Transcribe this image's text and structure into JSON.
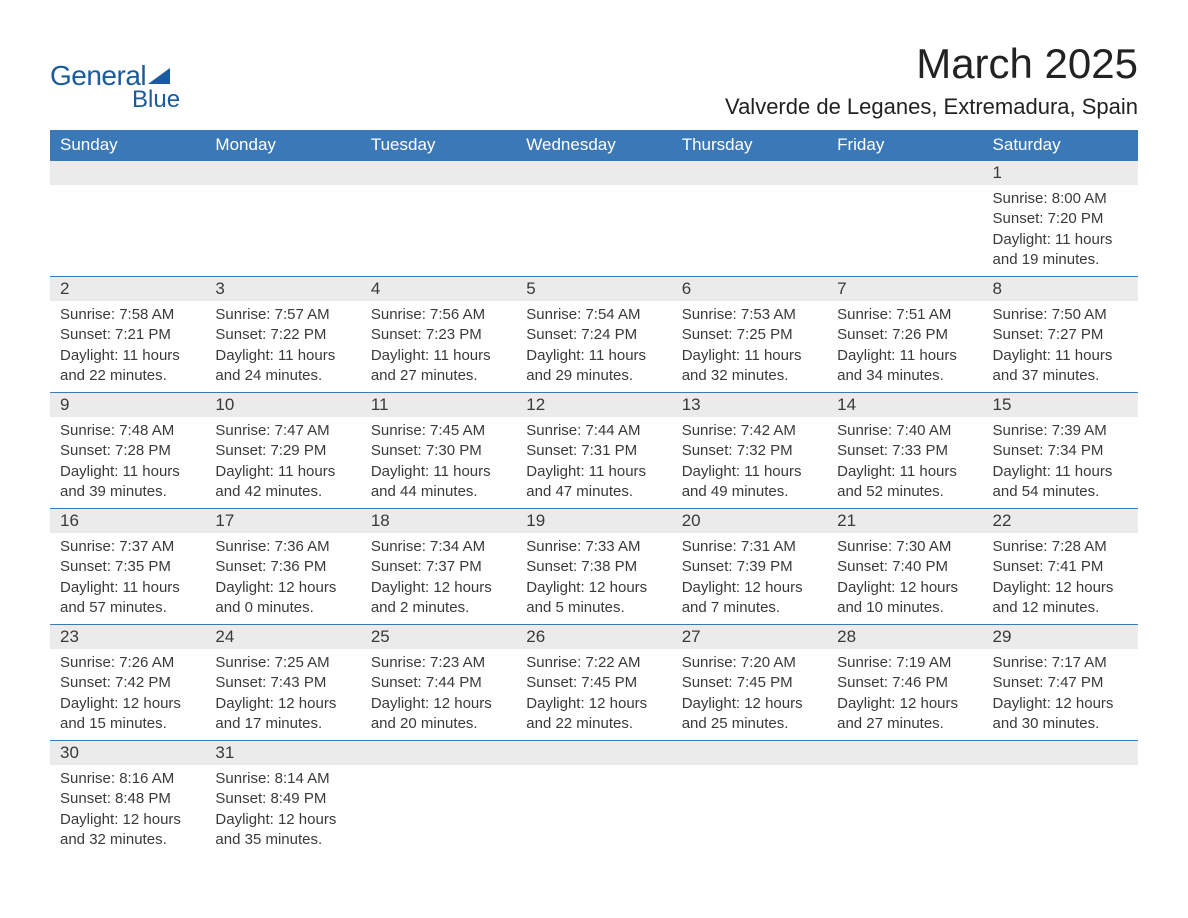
{
  "logo": {
    "word1": "General",
    "word2": "Blue",
    "triangle_color": "#1a5a9e"
  },
  "title": "March 2025",
  "location": "Valverde de Leganes, Extremadura, Spain",
  "colors": {
    "header_bg": "#3b78b8",
    "header_text": "#ffffff",
    "daynum_bg": "#ebebeb",
    "row_divider": "#3b78b8",
    "body_text": "#3a3a3a",
    "page_bg": "#ffffff"
  },
  "typography": {
    "title_fontsize": 42,
    "location_fontsize": 22,
    "header_fontsize": 17,
    "daynum_fontsize": 17,
    "body_fontsize": 15,
    "font_family": "Arial"
  },
  "calendar": {
    "type": "table",
    "columns": [
      "Sunday",
      "Monday",
      "Tuesday",
      "Wednesday",
      "Thursday",
      "Friday",
      "Saturday"
    ],
    "weeks": [
      [
        {
          "blank": true
        },
        {
          "blank": true
        },
        {
          "blank": true
        },
        {
          "blank": true
        },
        {
          "blank": true
        },
        {
          "blank": true
        },
        {
          "day": "1",
          "sunrise": "Sunrise: 8:00 AM",
          "sunset": "Sunset: 7:20 PM",
          "dl1": "Daylight: 11 hours",
          "dl2": "and 19 minutes."
        }
      ],
      [
        {
          "day": "2",
          "sunrise": "Sunrise: 7:58 AM",
          "sunset": "Sunset: 7:21 PM",
          "dl1": "Daylight: 11 hours",
          "dl2": "and 22 minutes."
        },
        {
          "day": "3",
          "sunrise": "Sunrise: 7:57 AM",
          "sunset": "Sunset: 7:22 PM",
          "dl1": "Daylight: 11 hours",
          "dl2": "and 24 minutes."
        },
        {
          "day": "4",
          "sunrise": "Sunrise: 7:56 AM",
          "sunset": "Sunset: 7:23 PM",
          "dl1": "Daylight: 11 hours",
          "dl2": "and 27 minutes."
        },
        {
          "day": "5",
          "sunrise": "Sunrise: 7:54 AM",
          "sunset": "Sunset: 7:24 PM",
          "dl1": "Daylight: 11 hours",
          "dl2": "and 29 minutes."
        },
        {
          "day": "6",
          "sunrise": "Sunrise: 7:53 AM",
          "sunset": "Sunset: 7:25 PM",
          "dl1": "Daylight: 11 hours",
          "dl2": "and 32 minutes."
        },
        {
          "day": "7",
          "sunrise": "Sunrise: 7:51 AM",
          "sunset": "Sunset: 7:26 PM",
          "dl1": "Daylight: 11 hours",
          "dl2": "and 34 minutes."
        },
        {
          "day": "8",
          "sunrise": "Sunrise: 7:50 AM",
          "sunset": "Sunset: 7:27 PM",
          "dl1": "Daylight: 11 hours",
          "dl2": "and 37 minutes."
        }
      ],
      [
        {
          "day": "9",
          "sunrise": "Sunrise: 7:48 AM",
          "sunset": "Sunset: 7:28 PM",
          "dl1": "Daylight: 11 hours",
          "dl2": "and 39 minutes."
        },
        {
          "day": "10",
          "sunrise": "Sunrise: 7:47 AM",
          "sunset": "Sunset: 7:29 PM",
          "dl1": "Daylight: 11 hours",
          "dl2": "and 42 minutes."
        },
        {
          "day": "11",
          "sunrise": "Sunrise: 7:45 AM",
          "sunset": "Sunset: 7:30 PM",
          "dl1": "Daylight: 11 hours",
          "dl2": "and 44 minutes."
        },
        {
          "day": "12",
          "sunrise": "Sunrise: 7:44 AM",
          "sunset": "Sunset: 7:31 PM",
          "dl1": "Daylight: 11 hours",
          "dl2": "and 47 minutes."
        },
        {
          "day": "13",
          "sunrise": "Sunrise: 7:42 AM",
          "sunset": "Sunset: 7:32 PM",
          "dl1": "Daylight: 11 hours",
          "dl2": "and 49 minutes."
        },
        {
          "day": "14",
          "sunrise": "Sunrise: 7:40 AM",
          "sunset": "Sunset: 7:33 PM",
          "dl1": "Daylight: 11 hours",
          "dl2": "and 52 minutes."
        },
        {
          "day": "15",
          "sunrise": "Sunrise: 7:39 AM",
          "sunset": "Sunset: 7:34 PM",
          "dl1": "Daylight: 11 hours",
          "dl2": "and 54 minutes."
        }
      ],
      [
        {
          "day": "16",
          "sunrise": "Sunrise: 7:37 AM",
          "sunset": "Sunset: 7:35 PM",
          "dl1": "Daylight: 11 hours",
          "dl2": "and 57 minutes."
        },
        {
          "day": "17",
          "sunrise": "Sunrise: 7:36 AM",
          "sunset": "Sunset: 7:36 PM",
          "dl1": "Daylight: 12 hours",
          "dl2": "and 0 minutes."
        },
        {
          "day": "18",
          "sunrise": "Sunrise: 7:34 AM",
          "sunset": "Sunset: 7:37 PM",
          "dl1": "Daylight: 12 hours",
          "dl2": "and 2 minutes."
        },
        {
          "day": "19",
          "sunrise": "Sunrise: 7:33 AM",
          "sunset": "Sunset: 7:38 PM",
          "dl1": "Daylight: 12 hours",
          "dl2": "and 5 minutes."
        },
        {
          "day": "20",
          "sunrise": "Sunrise: 7:31 AM",
          "sunset": "Sunset: 7:39 PM",
          "dl1": "Daylight: 12 hours",
          "dl2": "and 7 minutes."
        },
        {
          "day": "21",
          "sunrise": "Sunrise: 7:30 AM",
          "sunset": "Sunset: 7:40 PM",
          "dl1": "Daylight: 12 hours",
          "dl2": "and 10 minutes."
        },
        {
          "day": "22",
          "sunrise": "Sunrise: 7:28 AM",
          "sunset": "Sunset: 7:41 PM",
          "dl1": "Daylight: 12 hours",
          "dl2": "and 12 minutes."
        }
      ],
      [
        {
          "day": "23",
          "sunrise": "Sunrise: 7:26 AM",
          "sunset": "Sunset: 7:42 PM",
          "dl1": "Daylight: 12 hours",
          "dl2": "and 15 minutes."
        },
        {
          "day": "24",
          "sunrise": "Sunrise: 7:25 AM",
          "sunset": "Sunset: 7:43 PM",
          "dl1": "Daylight: 12 hours",
          "dl2": "and 17 minutes."
        },
        {
          "day": "25",
          "sunrise": "Sunrise: 7:23 AM",
          "sunset": "Sunset: 7:44 PM",
          "dl1": "Daylight: 12 hours",
          "dl2": "and 20 minutes."
        },
        {
          "day": "26",
          "sunrise": "Sunrise: 7:22 AM",
          "sunset": "Sunset: 7:45 PM",
          "dl1": "Daylight: 12 hours",
          "dl2": "and 22 minutes."
        },
        {
          "day": "27",
          "sunrise": "Sunrise: 7:20 AM",
          "sunset": "Sunset: 7:45 PM",
          "dl1": "Daylight: 12 hours",
          "dl2": "and 25 minutes."
        },
        {
          "day": "28",
          "sunrise": "Sunrise: 7:19 AM",
          "sunset": "Sunset: 7:46 PM",
          "dl1": "Daylight: 12 hours",
          "dl2": "and 27 minutes."
        },
        {
          "day": "29",
          "sunrise": "Sunrise: 7:17 AM",
          "sunset": "Sunset: 7:47 PM",
          "dl1": "Daylight: 12 hours",
          "dl2": "and 30 minutes."
        }
      ],
      [
        {
          "day": "30",
          "sunrise": "Sunrise: 8:16 AM",
          "sunset": "Sunset: 8:48 PM",
          "dl1": "Daylight: 12 hours",
          "dl2": "and 32 minutes."
        },
        {
          "day": "31",
          "sunrise": "Sunrise: 8:14 AM",
          "sunset": "Sunset: 8:49 PM",
          "dl1": "Daylight: 12 hours",
          "dl2": "and 35 minutes."
        },
        {
          "blank": true
        },
        {
          "blank": true
        },
        {
          "blank": true
        },
        {
          "blank": true
        },
        {
          "blank": true
        }
      ]
    ]
  }
}
